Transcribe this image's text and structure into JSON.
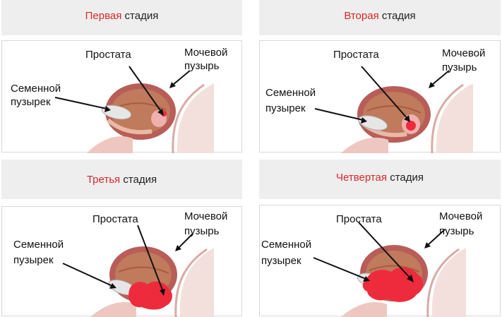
{
  "colors": {
    "accent": "#d42a2a",
    "header_bg": "#eeeeee",
    "tumor": "#ee2b3c"
  },
  "panels": [
    {
      "highlight": "Первая",
      "rest": " стадия",
      "prostate": "Простата",
      "bladder_1": "Мочевой",
      "bladder_2": "пузырь",
      "vesicle_1": "Семенной",
      "vesicle_2": "пузырек",
      "tumor_level": 1
    },
    {
      "highlight": "Вторая",
      "rest": " стадия",
      "prostate": "Простата",
      "bladder_1": "Мочевой",
      "bladder_2": "пузырь",
      "vesicle_1": "Семенной",
      "vesicle_2": "пузырек",
      "tumor_level": 2
    },
    {
      "highlight": "Третья",
      "rest": " стадия",
      "prostate": "Простата",
      "bladder_1": "Мочевой",
      "bladder_2": "пузырь",
      "vesicle_1": "Семенной",
      "vesicle_2": "пузырек",
      "tumor_level": 3
    },
    {
      "highlight": "Четвертая",
      "rest": " стадия",
      "prostate": "Простата",
      "bladder_1": "Мочевой",
      "bladder_2": "пузырь",
      "vesicle_1": "Семенной",
      "vesicle_2": "пузырек",
      "tumor_level": 4
    }
  ]
}
